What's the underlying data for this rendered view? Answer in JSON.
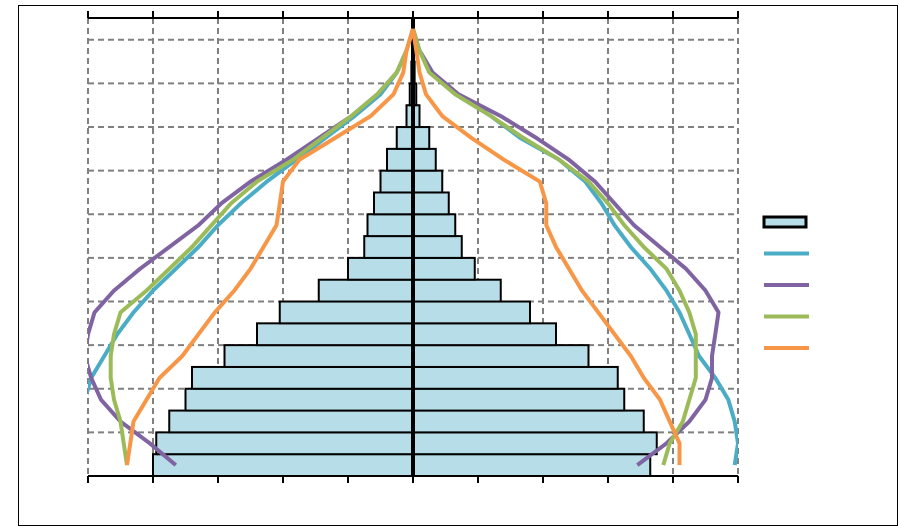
{
  "chart_data": {
    "type": "pyramid",
    "categories": [
      null,
      null,
      null,
      null,
      null,
      null,
      null,
      null,
      null,
      null,
      null,
      null,
      null,
      null,
      null,
      null,
      null,
      null,
      null,
      null,
      null
    ],
    "xlim": [
      -10,
      10
    ],
    "xticks": [
      -10,
      -8,
      -6,
      -4,
      -2,
      0,
      2,
      4,
      6,
      8,
      10
    ],
    "grid": true,
    "bars": {
      "color": "#b7dde8",
      "left": [
        -8.0,
        -7.9,
        -7.5,
        -7.0,
        -6.8,
        -5.8,
        -4.8,
        -4.1,
        -2.9,
        -2.0,
        -1.5,
        -1.4,
        -1.2,
        -1.0,
        -0.8,
        -0.5,
        -0.2,
        -0.1,
        -0.05,
        0,
        0
      ],
      "right": [
        7.3,
        7.5,
        7.1,
        6.5,
        6.3,
        5.4,
        4.4,
        3.6,
        2.7,
        1.9,
        1.5,
        1.3,
        1.1,
        0.9,
        0.7,
        0.5,
        0.2,
        0.1,
        0.05,
        0,
        0
      ]
    },
    "series": [
      {
        "color": "#4bacc6",
        "left": [
          -11.0,
          -10.8,
          -10.5,
          -10.1,
          -9.9,
          -9.5,
          -9.1,
          -8.6,
          -8.0,
          -7.3,
          -6.6,
          -6.0,
          -5.3,
          -4.5,
          -3.6,
          -2.7,
          -1.8,
          -1.0,
          -0.5,
          -0.2,
          0
        ],
        "right": [
          9.9,
          10.0,
          9.9,
          9.7,
          9.3,
          8.8,
          8.5,
          8.2,
          7.8,
          7.3,
          6.7,
          6.2,
          5.8,
          5.3,
          4.5,
          3.3,
          2.4,
          1.3,
          0.6,
          0.2,
          0
        ]
      },
      {
        "color": "#8064a2",
        "left": [
          -7.3,
          -8.1,
          -9.0,
          -9.6,
          -9.9,
          -10.1,
          -10.0,
          -9.8,
          -9.2,
          -8.4,
          -7.5,
          -6.6,
          -5.9,
          -5.0,
          -3.9,
          -2.9,
          -1.9,
          -1.1,
          -0.5,
          -0.2,
          0
        ],
        "right": [
          6.9,
          7.8,
          8.5,
          9.0,
          9.2,
          9.2,
          9.3,
          9.4,
          9.0,
          8.4,
          7.6,
          6.8,
          6.2,
          5.6,
          4.8,
          3.8,
          2.7,
          1.4,
          0.6,
          0.2,
          0
        ]
      },
      {
        "color": "#9bbb59",
        "left": [
          -8.8,
          -8.9,
          -9.0,
          -9.2,
          -9.3,
          -9.3,
          -9.2,
          -9.0,
          -8.2,
          -7.5,
          -6.8,
          -6.2,
          -5.6,
          -4.8,
          -3.7,
          -2.8,
          -1.9,
          -1.1,
          -0.5,
          -0.2,
          0
        ],
        "right": [
          7.7,
          7.9,
          8.3,
          8.5,
          8.7,
          8.7,
          8.7,
          8.5,
          8.2,
          7.8,
          7.1,
          6.5,
          6.0,
          5.4,
          4.5,
          3.4,
          2.4,
          1.3,
          0.5,
          0.2,
          0
        ]
      },
      {
        "color": "#f79646",
        "left": [
          -8.8,
          -8.7,
          -8.6,
          -8.2,
          -7.8,
          -7.1,
          -6.6,
          -6.1,
          -5.5,
          -5.0,
          -4.6,
          -4.2,
          -4.1,
          -4.0,
          -3.5,
          -2.4,
          -1.3,
          -0.6,
          -0.3,
          -0.2,
          0
        ],
        "right": [
          8.2,
          8.2,
          7.9,
          7.6,
          7.1,
          6.7,
          6.2,
          5.7,
          5.2,
          4.8,
          4.4,
          4.1,
          4.1,
          3.9,
          2.8,
          1.8,
          0.9,
          0.4,
          0.2,
          0.1,
          0
        ]
      }
    ]
  }
}
